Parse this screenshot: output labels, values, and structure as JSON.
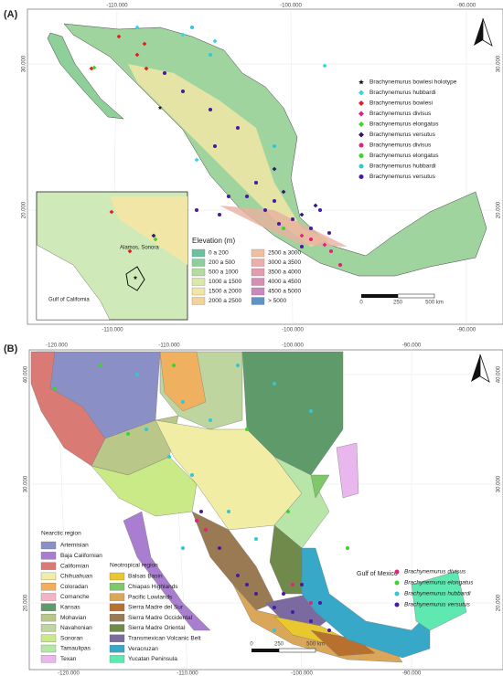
{
  "panel_a": {
    "label": "(A)",
    "top_ticks": [
      "-110.000",
      "-100.000",
      "-90.000"
    ],
    "bottom_ticks": [
      "-110.000",
      "-100.000",
      "-90.000"
    ],
    "left_ticks": [
      "30.000",
      "20.000"
    ],
    "right_ticks": [
      "30.000",
      "20.000"
    ],
    "legend": [
      {
        "name": "Brachynemurus bowlesi holotype",
        "marker": "star",
        "color": "#111111"
      },
      {
        "name": "Brachynemurus hubbardi",
        "marker": "diamond",
        "color": "#33d6e0"
      },
      {
        "name": "Brachynemurus bowlesi",
        "marker": "diamond",
        "color": "#e0201c"
      },
      {
        "name": "Brachynemurus divisus",
        "marker": "diamond",
        "color": "#e0237a"
      },
      {
        "name": "Brachynemurus elongatus",
        "marker": "diamond",
        "color": "#3ed22e"
      },
      {
        "name": "Brachynemurus versutus",
        "marker": "diamond",
        "color": "#2c1a6e"
      },
      {
        "name": "Brachynemurus divisus",
        "marker": "circle",
        "color": "#e0237a"
      },
      {
        "name": "Brachynemurus elongatus",
        "marker": "circle",
        "color": "#3ed22e"
      },
      {
        "name": "Brachynemurus hubbardi",
        "marker": "circle",
        "color": "#33c6d8"
      },
      {
        "name": "Brachynemurus versutus",
        "marker": "circle",
        "color": "#4a1aa0"
      }
    ],
    "inset_labels": [
      "Alamos, Sonora",
      "Gulf of California"
    ],
    "elevation_title": "Elevation (m)",
    "elevation_classes": [
      {
        "label": "0 a 200",
        "color": "#6cc2a0"
      },
      {
        "label": "200 a 500",
        "color": "#8ccf9c"
      },
      {
        "label": "500 a 1000",
        "color": "#b4dc9e"
      },
      {
        "label": "1000 a 1500",
        "color": "#dbe8a6"
      },
      {
        "label": "1500 a 2000",
        "color": "#f1e6a6"
      },
      {
        "label": "2000 a 2500",
        "color": "#f2d49a"
      },
      {
        "label": "2500 a 3000",
        "color": "#f0bfa0"
      },
      {
        "label": "3000 a 3500",
        "color": "#ebaeaa"
      },
      {
        "label": "3500 a 4000",
        "color": "#e49bb0"
      },
      {
        "label": "4000 a 4500",
        "color": "#d98cb4"
      },
      {
        "label": "4500 a 5000",
        "color": "#c888bd"
      },
      {
        "label": "> 5000",
        "color": "#5e93c4"
      }
    ],
    "scale": [
      "0",
      "250",
      "500 km"
    ]
  },
  "panel_b": {
    "label": "(B)",
    "top_ticks": [
      "-120.000",
      "-110.000",
      "-100.000",
      "-90.000"
    ],
    "bottom_ticks": [
      "-120.000",
      "-110.000",
      "-100.000",
      "-90.000"
    ],
    "left_ticks": [
      "40.000",
      "30.000",
      "20.000"
    ],
    "right_ticks": [
      "40.000",
      "30.000",
      "20.000"
    ],
    "gulf_label": "Gulf of Mexico",
    "nearctic_title": "Nearctic region",
    "nearctic": [
      {
        "label": "Artemisian",
        "color": "#8a90c6"
      },
      {
        "label": "Baja Californian",
        "color": "#a97ed0"
      },
      {
        "label": "Californian",
        "color": "#d97a74"
      },
      {
        "label": "Chihuahuan",
        "color": "#f2eda4"
      },
      {
        "label": "Coloradan",
        "color": "#f5ad58"
      },
      {
        "label": "Comanche",
        "color": "#f3b4c6"
      },
      {
        "label": "Kansas",
        "color": "#5f9a6a"
      },
      {
        "label": "Mohavian",
        "color": "#b9c889"
      },
      {
        "label": "Navahonian",
        "color": "#bfd5a0"
      },
      {
        "label": "Sonoran",
        "color": "#c9ea86"
      },
      {
        "label": "Tamaulipas",
        "color": "#b8e5a8"
      },
      {
        "label": "Texan",
        "color": "#eab6ee"
      }
    ],
    "neotropical_title": "Neotropical region",
    "neotropical": [
      {
        "label": "Balsas Basin",
        "color": "#e9c72e"
      },
      {
        "label": "Chiapas Highlands",
        "color": "#7fc86a"
      },
      {
        "label": "Pacific Lowlands",
        "color": "#d9a65a"
      },
      {
        "label": "Sierra Madre del Sur",
        "color": "#b8702e"
      },
      {
        "label": "Sierra Madre Occidental",
        "color": "#9a7a52"
      },
      {
        "label": "Sierra Madre Oriental",
        "color": "#6f8a4a"
      },
      {
        "label": "Transmexican Volcanic Belt",
        "color": "#7a6aa0"
      },
      {
        "label": "Veracruzan",
        "color": "#38a8c8"
      },
      {
        "label": "Yucatan Peninsula",
        "color": "#5fe8b0"
      }
    ],
    "legend": [
      {
        "name": "Brachynemurus divisus",
        "color": "#e0237a"
      },
      {
        "name": "Brachynemurus elongatus",
        "color": "#3ed22e"
      },
      {
        "name": "Brachynemurus hubbardi",
        "color": "#33c6d8"
      },
      {
        "name": "Brachynemurus versutus",
        "color": "#4a1aa0"
      }
    ],
    "scale": [
      "0",
      "250",
      "500 km"
    ]
  }
}
